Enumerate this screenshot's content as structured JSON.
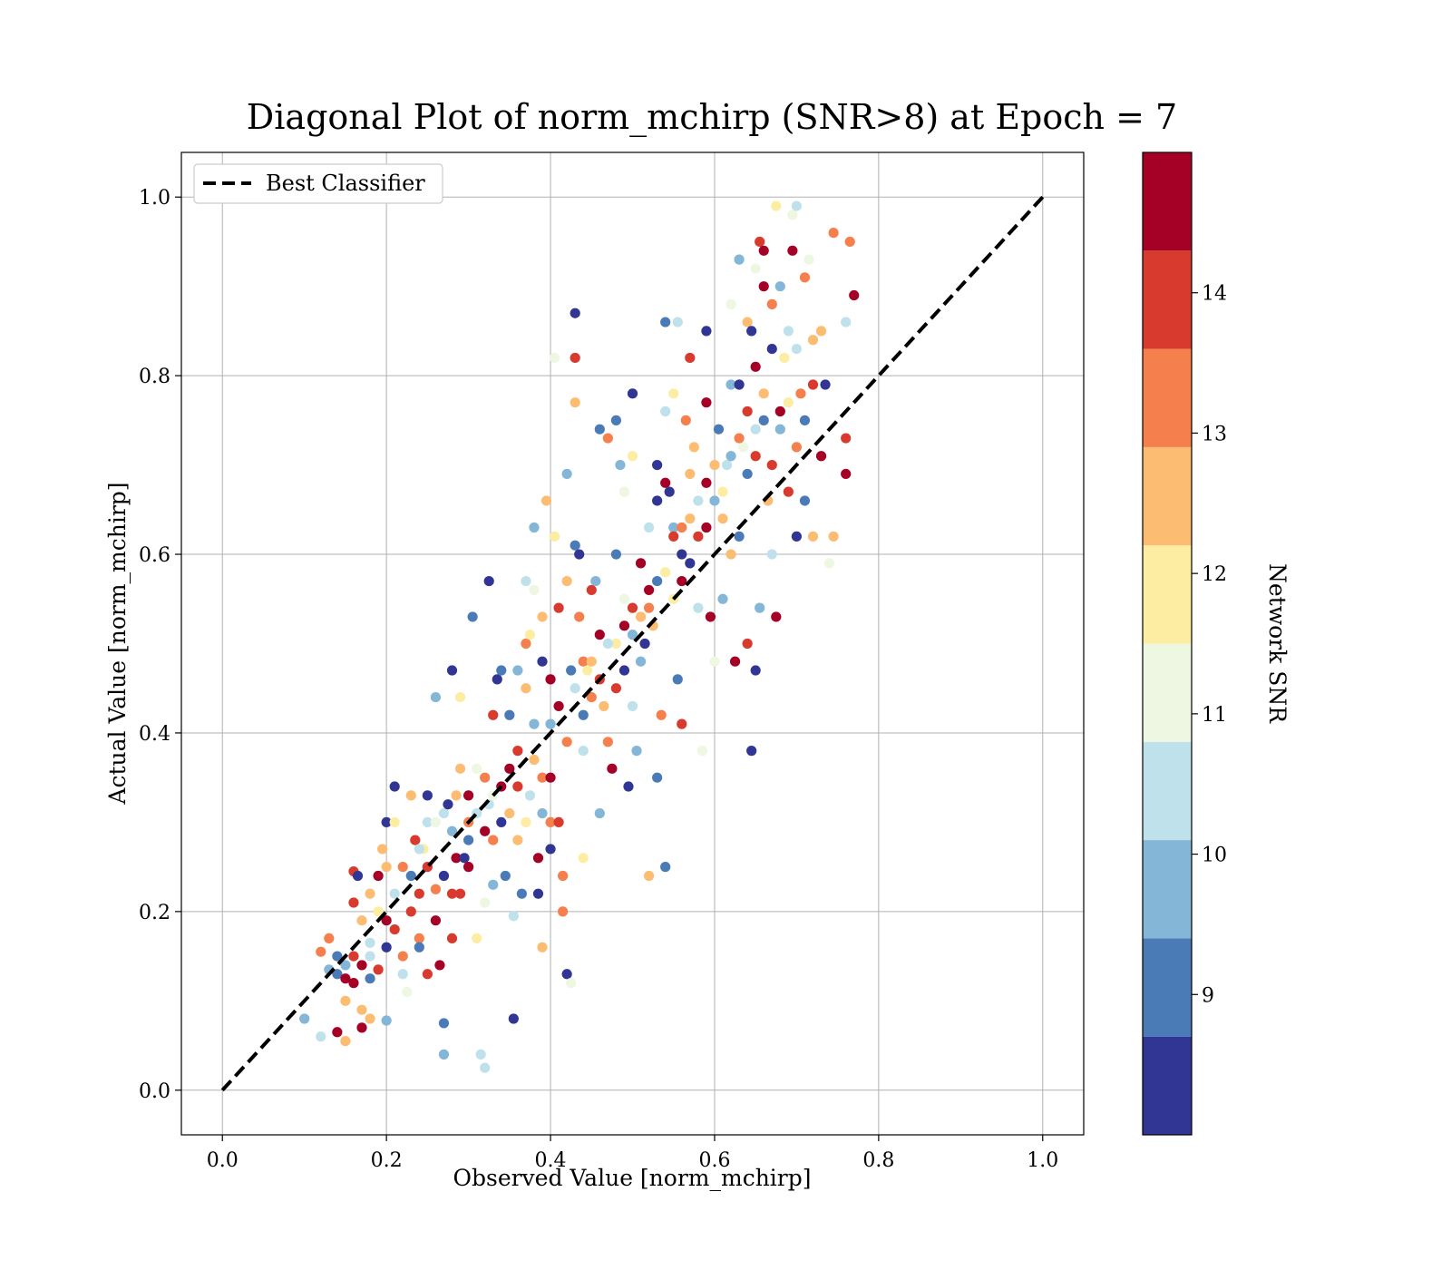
{
  "chart_data": {
    "type": "scatter",
    "title": "Diagonal Plot of norm_mchirp (SNR>8) at Epoch = 7",
    "xlabel": "Observed Value [norm_mchirp]",
    "ylabel": "Actual Value [norm_mchirp]",
    "xlim": [
      -0.05,
      1.05
    ],
    "ylim": [
      -0.05,
      1.05
    ],
    "xticks": [
      "0.0",
      "0.2",
      "0.4",
      "0.6",
      "0.8",
      "1.0"
    ],
    "yticks": [
      "0.0",
      "0.2",
      "0.4",
      "0.6",
      "0.8",
      "1.0"
    ],
    "grid": true,
    "legend": {
      "placement": "top-left",
      "entries": [
        "Best Classifier"
      ]
    },
    "reference_line": {
      "name": "Best Classifier",
      "x": [
        0,
        1
      ],
      "y": [
        0,
        1
      ],
      "style": "dashed",
      "color": "#000000"
    },
    "colorbar": {
      "label": "Network SNR",
      "range": [
        8,
        15
      ],
      "ticks": [
        "9",
        "10",
        "11",
        "12",
        "13",
        "14"
      ],
      "levels": [
        "#313695",
        "#4575b4",
        "#74add1",
        "#abd9e9",
        "#e0f3f8",
        "#ffffbf",
        "#fee090",
        "#fdae61",
        "#f46d43",
        "#d73027",
        "#a50026"
      ],
      "bins": [
        {
          "color": "#313695",
          "from": 8.0,
          "to": 8.7
        },
        {
          "color": "#4a7bb7",
          "from": 8.7,
          "to": 9.4
        },
        {
          "color": "#83b6d7",
          "from": 9.4,
          "to": 10.1
        },
        {
          "color": "#bee1ec",
          "from": 10.1,
          "to": 10.8
        },
        {
          "color": "#eef7e1",
          "from": 10.8,
          "to": 11.5
        },
        {
          "color": "#fdeda3",
          "from": 11.5,
          "to": 12.2
        },
        {
          "color": "#fcbd72",
          "from": 12.2,
          "to": 12.9
        },
        {
          "color": "#f57f4d",
          "from": 12.9,
          "to": 13.6
        },
        {
          "color": "#d93a2e",
          "from": 13.6,
          "to": 14.3
        },
        {
          "color": "#a50026",
          "from": 14.3,
          "to": 15.0
        }
      ]
    },
    "points": [
      [
        0.1,
        0.08,
        9.6
      ],
      [
        0.12,
        0.06,
        10.5
      ],
      [
        0.14,
        0.065,
        14.8
      ],
      [
        0.15,
        0.055,
        12.5
      ],
      [
        0.15,
        0.1,
        12.4
      ],
      [
        0.17,
        0.09,
        12.5
      ],
      [
        0.17,
        0.07,
        14.5
      ],
      [
        0.18,
        0.08,
        12.3
      ],
      [
        0.2,
        0.078,
        9.9
      ],
      [
        0.12,
        0.155,
        13.2
      ],
      [
        0.13,
        0.17,
        13.0
      ],
      [
        0.13,
        0.135,
        9.5
      ],
      [
        0.14,
        0.13,
        9.1
      ],
      [
        0.14,
        0.15,
        9.2
      ],
      [
        0.15,
        0.14,
        9.4
      ],
      [
        0.15,
        0.125,
        14.8
      ],
      [
        0.16,
        0.12,
        14.7
      ],
      [
        0.16,
        0.15,
        14.1
      ],
      [
        0.16,
        0.245,
        14.2
      ],
      [
        0.165,
        0.24,
        8.3
      ],
      [
        0.16,
        0.21,
        14.0
      ],
      [
        0.17,
        0.19,
        12.7
      ],
      [
        0.17,
        0.14,
        14.6
      ],
      [
        0.18,
        0.15,
        10.2
      ],
      [
        0.18,
        0.125,
        9.0
      ],
      [
        0.18,
        0.165,
        10.6
      ],
      [
        0.18,
        0.22,
        12.3
      ],
      [
        0.19,
        0.24,
        14.4
      ],
      [
        0.19,
        0.2,
        11.5
      ],
      [
        0.19,
        0.135,
        13.8
      ],
      [
        0.195,
        0.27,
        12.6
      ],
      [
        0.2,
        0.3,
        8.6
      ],
      [
        0.2,
        0.25,
        12.4
      ],
      [
        0.2,
        0.16,
        8.2
      ],
      [
        0.2,
        0.19,
        14.5
      ],
      [
        0.21,
        0.22,
        10.6
      ],
      [
        0.21,
        0.18,
        14.1
      ],
      [
        0.21,
        0.34,
        8.3
      ],
      [
        0.22,
        0.25,
        13.3
      ],
      [
        0.22,
        0.15,
        12.9
      ],
      [
        0.22,
        0.13,
        10.5
      ],
      [
        0.225,
        0.11,
        10.8
      ],
      [
        0.23,
        0.2,
        14.2
      ],
      [
        0.23,
        0.24,
        9.1
      ],
      [
        0.23,
        0.33,
        12.5
      ],
      [
        0.235,
        0.28,
        14.1
      ],
      [
        0.24,
        0.17,
        13.5
      ],
      [
        0.24,
        0.16,
        8.7
      ],
      [
        0.24,
        0.22,
        13.9
      ],
      [
        0.245,
        0.27,
        11.6
      ],
      [
        0.25,
        0.33,
        8.1
      ],
      [
        0.25,
        0.3,
        10.2
      ],
      [
        0.25,
        0.25,
        13.6
      ],
      [
        0.25,
        0.13,
        13.8
      ],
      [
        0.26,
        0.44,
        9.6
      ],
      [
        0.26,
        0.19,
        14.8
      ],
      [
        0.26,
        0.225,
        12.9
      ],
      [
        0.265,
        0.14,
        14.5
      ],
      [
        0.27,
        0.24,
        8.2
      ],
      [
        0.27,
        0.31,
        10.5
      ],
      [
        0.27,
        0.075,
        9.3
      ],
      [
        0.27,
        0.04,
        9.4
      ],
      [
        0.275,
        0.32,
        8.2
      ],
      [
        0.28,
        0.47,
        8.2
      ],
      [
        0.28,
        0.17,
        14.1
      ],
      [
        0.28,
        0.22,
        13.8
      ],
      [
        0.285,
        0.26,
        14.5
      ],
      [
        0.285,
        0.33,
        12.6
      ],
      [
        0.29,
        0.44,
        12.0
      ],
      [
        0.29,
        0.36,
        12.2
      ],
      [
        0.29,
        0.22,
        14.1
      ],
      [
        0.295,
        0.26,
        8.4
      ],
      [
        0.3,
        0.3,
        13.5
      ],
      [
        0.3,
        0.33,
        14.6
      ],
      [
        0.3,
        0.25,
        14.3
      ],
      [
        0.305,
        0.53,
        9.2
      ],
      [
        0.31,
        0.17,
        12.1
      ],
      [
        0.31,
        0.36,
        10.8
      ],
      [
        0.315,
        0.04,
        10.7
      ],
      [
        0.32,
        0.21,
        10.8
      ],
      [
        0.32,
        0.29,
        14.5
      ],
      [
        0.32,
        0.35,
        13.1
      ],
      [
        0.32,
        0.025,
        10.4
      ],
      [
        0.325,
        0.57,
        8.1
      ],
      [
        0.325,
        0.32,
        10.3
      ],
      [
        0.33,
        0.42,
        13.8
      ],
      [
        0.33,
        0.23,
        9.6
      ],
      [
        0.33,
        0.28,
        13.2
      ],
      [
        0.335,
        0.46,
        8.6
      ],
      [
        0.34,
        0.47,
        9.0
      ],
      [
        0.34,
        0.34,
        14.7
      ],
      [
        0.345,
        0.24,
        9.3
      ],
      [
        0.35,
        0.42,
        8.9
      ],
      [
        0.35,
        0.31,
        12.3
      ],
      [
        0.35,
        0.36,
        14.6
      ],
      [
        0.355,
        0.195,
        10.4
      ],
      [
        0.355,
        0.08,
        8.1
      ],
      [
        0.36,
        0.47,
        9.4
      ],
      [
        0.36,
        0.38,
        13.9
      ],
      [
        0.36,
        0.28,
        12.4
      ],
      [
        0.365,
        0.22,
        9.2
      ],
      [
        0.37,
        0.57,
        10.4
      ],
      [
        0.37,
        0.5,
        13.1
      ],
      [
        0.37,
        0.45,
        12.8
      ],
      [
        0.375,
        0.51,
        11.8
      ],
      [
        0.375,
        0.33,
        10.6
      ],
      [
        0.38,
        0.63,
        10.0
      ],
      [
        0.38,
        0.56,
        11.3
      ],
      [
        0.38,
        0.41,
        9.4
      ],
      [
        0.385,
        0.26,
        14.3
      ],
      [
        0.385,
        0.22,
        8.5
      ],
      [
        0.39,
        0.48,
        8.3
      ],
      [
        0.39,
        0.53,
        12.6
      ],
      [
        0.39,
        0.35,
        13.5
      ],
      [
        0.39,
        0.16,
        12.7
      ],
      [
        0.395,
        0.66,
        12.5
      ],
      [
        0.4,
        0.46,
        14.6
      ],
      [
        0.4,
        0.41,
        9.7
      ],
      [
        0.4,
        0.3,
        13.1
      ],
      [
        0.4,
        0.27,
        8.4
      ],
      [
        0.405,
        0.62,
        12.0
      ],
      [
        0.405,
        0.82,
        11.0
      ],
      [
        0.41,
        0.43,
        14.8
      ],
      [
        0.41,
        0.54,
        13.9
      ],
      [
        0.41,
        0.3,
        14.2
      ],
      [
        0.415,
        0.2,
        13.3
      ],
      [
        0.415,
        0.24,
        12.9
      ],
      [
        0.42,
        0.69,
        9.6
      ],
      [
        0.42,
        0.13,
        8.2
      ],
      [
        0.42,
        0.57,
        12.6
      ],
      [
        0.425,
        0.47,
        9.1
      ],
      [
        0.425,
        0.12,
        11.2
      ],
      [
        0.43,
        0.87,
        8.2
      ],
      [
        0.43,
        0.82,
        13.8
      ],
      [
        0.43,
        0.77,
        12.5
      ],
      [
        0.43,
        0.61,
        8.7
      ],
      [
        0.435,
        0.6,
        8.4
      ],
      [
        0.435,
        0.53,
        12.9
      ],
      [
        0.44,
        0.48,
        13.5
      ],
      [
        0.44,
        0.38,
        10.4
      ],
      [
        0.44,
        0.26,
        11.8
      ],
      [
        0.445,
        0.47,
        11.7
      ],
      [
        0.45,
        0.44,
        13.1
      ],
      [
        0.45,
        0.56,
        14.1
      ],
      [
        0.455,
        0.57,
        9.5
      ],
      [
        0.46,
        0.74,
        8.9
      ],
      [
        0.46,
        0.51,
        14.6
      ],
      [
        0.46,
        0.31,
        10.0
      ],
      [
        0.465,
        0.43,
        12.5
      ],
      [
        0.47,
        0.73,
        13.2
      ],
      [
        0.47,
        0.39,
        13.4
      ],
      [
        0.475,
        0.36,
        14.5
      ],
      [
        0.48,
        0.75,
        9.1
      ],
      [
        0.48,
        0.6,
        8.8
      ],
      [
        0.48,
        0.5,
        11.9
      ],
      [
        0.485,
        0.7,
        9.5
      ],
      [
        0.49,
        0.67,
        10.9
      ],
      [
        0.49,
        0.52,
        14.7
      ],
      [
        0.49,
        0.47,
        8.2
      ],
      [
        0.495,
        0.34,
        8.2
      ],
      [
        0.5,
        0.78,
        8.3
      ],
      [
        0.5,
        0.71,
        11.6
      ],
      [
        0.5,
        0.54,
        14.0
      ],
      [
        0.5,
        0.43,
        10.4
      ],
      [
        0.505,
        0.38,
        9.5
      ],
      [
        0.51,
        0.59,
        14.6
      ],
      [
        0.51,
        0.48,
        10.0
      ],
      [
        0.515,
        0.5,
        8.6
      ],
      [
        0.52,
        0.63,
        10.5
      ],
      [
        0.52,
        0.56,
        14.5
      ],
      [
        0.52,
        0.24,
        12.3
      ],
      [
        0.525,
        0.52,
        12.8
      ],
      [
        0.53,
        0.7,
        8.3
      ],
      [
        0.53,
        0.66,
        8.2
      ],
      [
        0.53,
        0.35,
        9.0
      ],
      [
        0.535,
        0.42,
        13.5
      ],
      [
        0.54,
        0.86,
        9.2
      ],
      [
        0.54,
        0.76,
        10.1
      ],
      [
        0.54,
        0.68,
        14.5
      ],
      [
        0.54,
        0.25,
        9.3
      ],
      [
        0.545,
        0.67,
        8.4
      ],
      [
        0.55,
        0.78,
        11.8
      ],
      [
        0.55,
        0.63,
        9.6
      ],
      [
        0.55,
        0.55,
        11.9
      ],
      [
        0.555,
        0.86,
        10.2
      ],
      [
        0.555,
        0.46,
        8.8
      ],
      [
        0.56,
        0.63,
        13.5
      ],
      [
        0.56,
        0.57,
        14.8
      ],
      [
        0.56,
        0.41,
        13.7
      ],
      [
        0.565,
        0.75,
        13.5
      ],
      [
        0.57,
        0.82,
        13.7
      ],
      [
        0.57,
        0.69,
        12.2
      ],
      [
        0.57,
        0.59,
        8.5
      ],
      [
        0.575,
        0.72,
        12.6
      ],
      [
        0.58,
        0.62,
        14.1
      ],
      [
        0.58,
        0.54,
        10.6
      ],
      [
        0.585,
        0.38,
        11.2
      ],
      [
        0.59,
        0.85,
        8.1
      ],
      [
        0.59,
        0.77,
        14.8
      ],
      [
        0.59,
        0.68,
        14.7
      ],
      [
        0.595,
        0.53,
        14.6
      ],
      [
        0.6,
        0.66,
        9.5
      ],
      [
        0.6,
        0.48,
        10.9
      ],
      [
        0.605,
        0.74,
        9.3
      ],
      [
        0.61,
        0.64,
        12.5
      ],
      [
        0.61,
        0.55,
        9.8
      ],
      [
        0.615,
        0.7,
        10.3
      ],
      [
        0.62,
        0.88,
        11.2
      ],
      [
        0.62,
        0.79,
        9.8
      ],
      [
        0.62,
        0.6,
        12.8
      ],
      [
        0.625,
        0.48,
        14.4
      ],
      [
        0.63,
        0.93,
        9.5
      ],
      [
        0.63,
        0.79,
        8.4
      ],
      [
        0.63,
        0.62,
        9.3
      ],
      [
        0.635,
        0.72,
        10.9
      ],
      [
        0.64,
        0.86,
        12.6
      ],
      [
        0.64,
        0.76,
        13.6
      ],
      [
        0.64,
        0.5,
        14.0
      ],
      [
        0.645,
        0.85,
        8.5
      ],
      [
        0.645,
        0.38,
        8.2
      ],
      [
        0.65,
        0.92,
        11.4
      ],
      [
        0.65,
        0.81,
        14.9
      ],
      [
        0.65,
        0.71,
        13.8
      ],
      [
        0.65,
        0.47,
        8.5
      ],
      [
        0.655,
        0.95,
        14.1
      ],
      [
        0.655,
        0.54,
        9.9
      ],
      [
        0.66,
        0.94,
        14.8
      ],
      [
        0.66,
        0.9,
        14.5
      ],
      [
        0.66,
        0.75,
        9.3
      ],
      [
        0.665,
        0.66,
        12.3
      ],
      [
        0.67,
        0.88,
        13.2
      ],
      [
        0.67,
        0.83,
        8.5
      ],
      [
        0.67,
        0.6,
        10.6
      ],
      [
        0.675,
        0.99,
        12.0
      ],
      [
        0.675,
        0.53,
        14.7
      ],
      [
        0.68,
        0.9,
        9.6
      ],
      [
        0.68,
        0.76,
        14.3
      ],
      [
        0.685,
        0.82,
        11.6
      ],
      [
        0.69,
        0.85,
        10.1
      ],
      [
        0.69,
        0.67,
        13.8
      ],
      [
        0.695,
        0.98,
        10.9
      ],
      [
        0.695,
        0.94,
        14.3
      ],
      [
        0.7,
        0.99,
        10.2
      ],
      [
        0.7,
        0.83,
        10.5
      ],
      [
        0.7,
        0.62,
        8.3
      ],
      [
        0.705,
        0.78,
        13.3
      ],
      [
        0.71,
        0.91,
        13.4
      ],
      [
        0.71,
        0.66,
        9.0
      ],
      [
        0.715,
        0.93,
        11.2
      ],
      [
        0.72,
        0.84,
        12.6
      ],
      [
        0.72,
        0.79,
        14.0
      ],
      [
        0.72,
        0.62,
        12.4
      ],
      [
        0.73,
        0.85,
        12.7
      ],
      [
        0.73,
        0.71,
        14.8
      ],
      [
        0.735,
        0.79,
        8.6
      ],
      [
        0.74,
        0.59,
        11.3
      ],
      [
        0.745,
        0.96,
        13.3
      ],
      [
        0.745,
        0.62,
        12.5
      ],
      [
        0.76,
        0.86,
        10.5
      ],
      [
        0.765,
        0.95,
        13.3
      ],
      [
        0.77,
        0.89,
        14.9
      ],
      [
        0.76,
        0.73,
        14.1
      ],
      [
        0.76,
        0.69,
        14.8
      ],
      [
        0.21,
        0.3,
        12.1
      ],
      [
        0.24,
        0.27,
        10.4
      ],
      [
        0.26,
        0.3,
        11.0
      ],
      [
        0.28,
        0.29,
        9.5
      ],
      [
        0.3,
        0.28,
        9.2
      ],
      [
        0.31,
        0.31,
        10.1
      ],
      [
        0.33,
        0.33,
        11.4
      ],
      [
        0.34,
        0.3,
        8.5
      ],
      [
        0.36,
        0.34,
        14.2
      ],
      [
        0.37,
        0.3,
        12.0
      ],
      [
        0.38,
        0.37,
        12.6
      ],
      [
        0.39,
        0.31,
        10.0
      ],
      [
        0.4,
        0.35,
        14.7
      ],
      [
        0.42,
        0.39,
        13.1
      ],
      [
        0.43,
        0.45,
        10.4
      ],
      [
        0.44,
        0.42,
        8.7
      ],
      [
        0.45,
        0.48,
        12.4
      ],
      [
        0.46,
        0.46,
        14.1
      ],
      [
        0.47,
        0.5,
        10.1
      ],
      [
        0.48,
        0.45,
        13.7
      ],
      [
        0.49,
        0.55,
        11.1
      ],
      [
        0.5,
        0.51,
        9.5
      ],
      [
        0.51,
        0.53,
        12.5
      ],
      [
        0.52,
        0.54,
        13.0
      ],
      [
        0.53,
        0.57,
        9.1
      ],
      [
        0.54,
        0.58,
        11.7
      ],
      [
        0.55,
        0.62,
        13.9
      ],
      [
        0.56,
        0.6,
        8.6
      ],
      [
        0.57,
        0.64,
        12.8
      ],
      [
        0.58,
        0.66,
        10.4
      ],
      [
        0.59,
        0.63,
        14.5
      ],
      [
        0.6,
        0.7,
        12.4
      ],
      [
        0.61,
        0.67,
        11.5
      ],
      [
        0.62,
        0.71,
        9.6
      ],
      [
        0.63,
        0.73,
        13.2
      ],
      [
        0.64,
        0.69,
        8.7
      ],
      [
        0.65,
        0.74,
        10.7
      ],
      [
        0.66,
        0.78,
        12.7
      ],
      [
        0.67,
        0.7,
        14.2
      ],
      [
        0.68,
        0.74,
        9.9
      ],
      [
        0.69,
        0.77,
        11.6
      ],
      [
        0.7,
        0.72,
        13.5
      ],
      [
        0.71,
        0.75,
        8.9
      ]
    ]
  }
}
